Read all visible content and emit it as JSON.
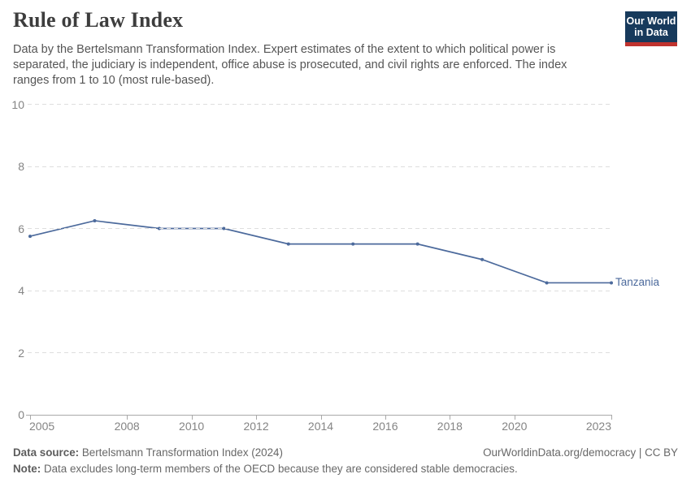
{
  "header": {
    "title": "Rule of Law Index",
    "subtitle_lines": [
      "Data by the Bertelsmann Transformation Index. Expert estimates of the extent to which political power is",
      "separated, the judiciary is independent, office abuse is prosecuted, and civil rights are enforced. The index",
      "ranges from 1 to 10 (most rule-based)."
    ],
    "logo": {
      "line1": "Our World",
      "line2": "in Data",
      "bg_color": "#173a5c",
      "stripe_color": "#c0332e"
    }
  },
  "chart_data": {
    "type": "line",
    "title": "Rule of Law Index",
    "xlabel": "",
    "ylabel": "",
    "xlim": [
      2005,
      2023
    ],
    "ylim": [
      0,
      10
    ],
    "xticks": [
      2005,
      2008,
      2010,
      2012,
      2014,
      2016,
      2018,
      2020,
      2023
    ],
    "yticks": [
      0,
      2,
      4,
      6,
      8,
      10
    ],
    "grid": "horizontal-dashed",
    "legend_position": "end-of-line-label",
    "series": [
      {
        "name": "Tanzania",
        "color": "#4c6a9c",
        "x": [
          2005,
          2007,
          2009,
          2011,
          2013,
          2015,
          2017,
          2019,
          2021,
          2023
        ],
        "values": [
          5.75,
          6.25,
          6,
          6,
          5.5,
          5.5,
          5.5,
          5,
          4.25,
          4.25
        ]
      }
    ]
  },
  "footer": {
    "source_label": "Data source:",
    "source_text": " Bertelsmann Transformation Index (2024)",
    "link_text": "OurWorldinData.org/democracy | CC BY",
    "note_label": "Note:",
    "note_text": " Data excludes long-term members of the OECD because they are considered stable democracies."
  }
}
